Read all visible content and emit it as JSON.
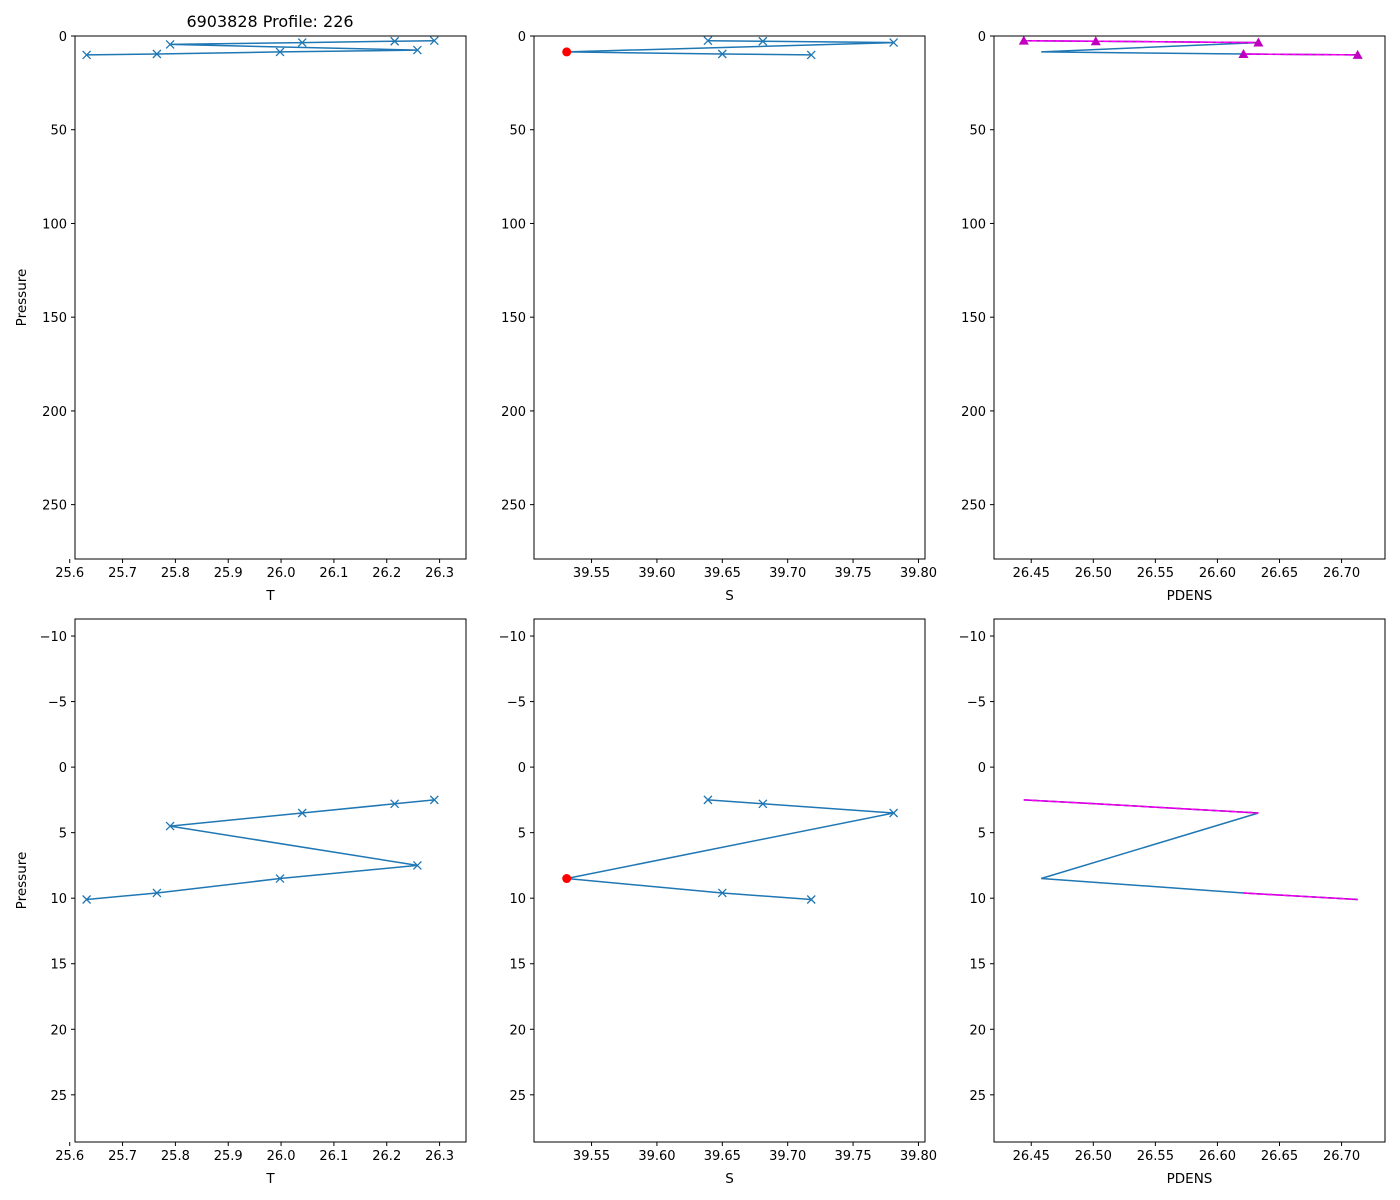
{
  "figure_title": "6903828 Profile: 226",
  "colors": {
    "series_line": "#1f77b4",
    "flag_point": "#ff0000",
    "pdens_flag": "#bf00bf",
    "pdens_dashed": "#ff00ff"
  },
  "chart_data": [
    {
      "id": "top-T",
      "type": "line",
      "title": "6903828 Profile: 226",
      "xlabel": "T",
      "ylabel": "Pressure",
      "xlim": [
        25.61,
        26.35
      ],
      "ylim": [
        279,
        0
      ],
      "xticks": [
        "25.6",
        "25.7",
        "25.8",
        "25.9",
        "26.0",
        "26.1",
        "26.2",
        "26.3"
      ],
      "xtick_values": [
        25.6,
        25.7,
        25.8,
        25.9,
        26.0,
        26.1,
        26.2,
        26.3
      ],
      "yticks": [
        "0",
        "50",
        "100",
        "150",
        "200",
        "250"
      ],
      "ytick_values": [
        0,
        50,
        100,
        150,
        200,
        250
      ],
      "series": [
        {
          "name": "T profile",
          "marker": "x",
          "x": [
            26.29,
            26.215,
            26.04,
            25.79,
            26.258,
            25.998,
            25.765,
            25.632
          ],
          "y": [
            2.5,
            2.8,
            3.5,
            4.5,
            7.5,
            8.5,
            9.6,
            10.1
          ]
        }
      ]
    },
    {
      "id": "top-S",
      "type": "line",
      "xlabel": "S",
      "ylabel": "",
      "xlim": [
        39.506,
        39.805
      ],
      "ylim": [
        279,
        0
      ],
      "xticks": [
        "39.55",
        "39.60",
        "39.65",
        "39.70",
        "39.75",
        "39.80"
      ],
      "xtick_values": [
        39.55,
        39.6,
        39.65,
        39.7,
        39.75,
        39.8
      ],
      "yticks": [
        "0",
        "50",
        "100",
        "150",
        "200",
        "250"
      ],
      "ytick_values": [
        0,
        50,
        100,
        150,
        200,
        250
      ],
      "series": [
        {
          "name": "S profile",
          "marker": "x",
          "x": [
            39.639,
            39.681,
            39.781,
            39.531,
            39.65,
            39.718
          ],
          "y": [
            2.5,
            2.8,
            3.5,
            8.5,
            9.6,
            10.1
          ],
          "unmarked_indices": [
            3
          ]
        },
        {
          "name": "flagged",
          "marker": "o",
          "x": [
            39.531
          ],
          "y": [
            8.5
          ]
        }
      ]
    },
    {
      "id": "top-PDENS",
      "type": "line",
      "xlabel": "PDENS",
      "ylabel": "",
      "xlim": [
        26.42,
        26.735
      ],
      "ylim": [
        279,
        0
      ],
      "xticks": [
        "26.45",
        "26.50",
        "26.55",
        "26.60",
        "26.65",
        "26.70"
      ],
      "xtick_values": [
        26.45,
        26.5,
        26.55,
        26.6,
        26.65,
        26.7
      ],
      "yticks": [
        "0",
        "50",
        "100",
        "150",
        "200",
        "250"
      ],
      "ytick_values": [
        0,
        50,
        100,
        150,
        200,
        250
      ],
      "series": [
        {
          "name": "PDENS profile",
          "marker": "none",
          "x": [
            26.444,
            26.502,
            26.633,
            26.458,
            26.621,
            26.713
          ],
          "y": [
            2.5,
            2.8,
            3.5,
            8.5,
            9.6,
            10.1
          ]
        },
        {
          "name": "flagged segment A",
          "marker": "triangle",
          "style": "dashed",
          "x": [
            26.444,
            26.502,
            26.633
          ],
          "y": [
            2.5,
            2.8,
            3.5
          ]
        },
        {
          "name": "flagged segment B",
          "marker": "triangle",
          "style": "dashed",
          "x": [
            26.621,
            26.713
          ],
          "y": [
            9.6,
            10.1
          ]
        }
      ]
    },
    {
      "id": "bottom-T",
      "type": "line",
      "xlabel": "T",
      "ylabel": "Pressure",
      "xlim": [
        25.61,
        26.35
      ],
      "ylim": [
        28.6,
        -11.3
      ],
      "xticks": [
        "25.6",
        "25.7",
        "25.8",
        "25.9",
        "26.0",
        "26.1",
        "26.2",
        "26.3"
      ],
      "xtick_values": [
        25.6,
        25.7,
        25.8,
        25.9,
        26.0,
        26.1,
        26.2,
        26.3
      ],
      "yticks": [
        "−10",
        "−5",
        "0",
        "5",
        "10",
        "15",
        "20",
        "25"
      ],
      "ytick_values": [
        -10,
        -5,
        0,
        5,
        10,
        15,
        20,
        25
      ],
      "series": [
        {
          "name": "T profile",
          "marker": "x",
          "x": [
            26.29,
            26.215,
            26.04,
            25.79,
            26.258,
            25.998,
            25.765,
            25.632
          ],
          "y": [
            2.5,
            2.8,
            3.5,
            4.5,
            7.5,
            8.5,
            9.6,
            10.1
          ]
        }
      ]
    },
    {
      "id": "bottom-S",
      "type": "line",
      "xlabel": "S",
      "ylabel": "",
      "xlim": [
        39.506,
        39.805
      ],
      "ylim": [
        28.6,
        -11.3
      ],
      "xticks": [
        "39.55",
        "39.60",
        "39.65",
        "39.70",
        "39.75",
        "39.80"
      ],
      "xtick_values": [
        39.55,
        39.6,
        39.65,
        39.7,
        39.75,
        39.8
      ],
      "yticks": [
        "−10",
        "−5",
        "0",
        "5",
        "10",
        "15",
        "20",
        "25"
      ],
      "ytick_values": [
        -10,
        -5,
        0,
        5,
        10,
        15,
        20,
        25
      ],
      "series": [
        {
          "name": "S profile",
          "marker": "x",
          "x": [
            39.639,
            39.681,
            39.781,
            39.531,
            39.65,
            39.718
          ],
          "y": [
            2.5,
            2.8,
            3.5,
            8.5,
            9.6,
            10.1
          ],
          "unmarked_indices": [
            3
          ]
        },
        {
          "name": "flagged",
          "marker": "o",
          "x": [
            39.531
          ],
          "y": [
            8.5
          ]
        }
      ]
    },
    {
      "id": "bottom-PDENS",
      "type": "line",
      "xlabel": "PDENS",
      "ylabel": "",
      "xlim": [
        26.42,
        26.735
      ],
      "ylim": [
        28.6,
        -11.3
      ],
      "xticks": [
        "26.45",
        "26.50",
        "26.55",
        "26.60",
        "26.65",
        "26.70"
      ],
      "xtick_values": [
        26.45,
        26.5,
        26.55,
        26.6,
        26.65,
        26.7
      ],
      "yticks": [
        "−10",
        "−5",
        "0",
        "5",
        "10",
        "15",
        "20",
        "25"
      ],
      "ytick_values": [
        -10,
        -5,
        0,
        5,
        10,
        15,
        20,
        25
      ],
      "series": [
        {
          "name": "PDENS profile",
          "marker": "none",
          "x": [
            26.444,
            26.502,
            26.633,
            26.458,
            26.621,
            26.713
          ],
          "y": [
            2.5,
            2.8,
            3.5,
            8.5,
            9.6,
            10.1
          ]
        },
        {
          "name": "flagged segment A",
          "marker": "none",
          "style": "dashed",
          "x": [
            26.444,
            26.502,
            26.633
          ],
          "y": [
            2.5,
            2.8,
            3.5
          ]
        },
        {
          "name": "flagged segment B",
          "marker": "none",
          "style": "dashed",
          "x": [
            26.621,
            26.713
          ],
          "y": [
            9.6,
            10.1
          ]
        }
      ]
    }
  ]
}
